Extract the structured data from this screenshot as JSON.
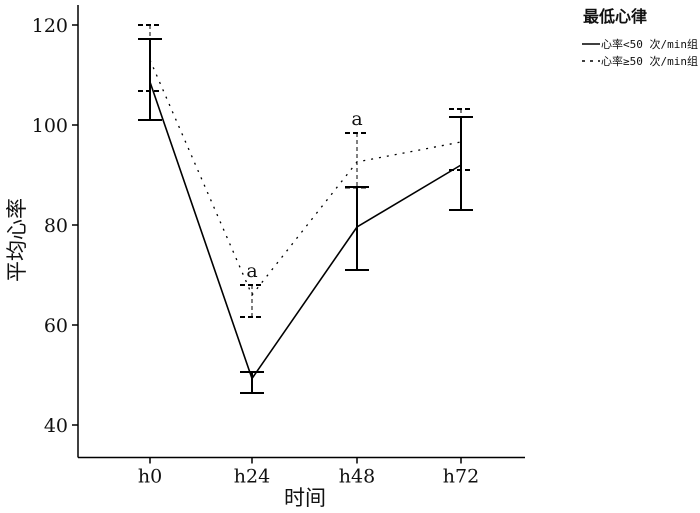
{
  "chart_data": {
    "type": "line",
    "title": "",
    "xlabel": "时间",
    "ylabel": "平均心率",
    "categories": [
      "h0",
      "h24",
      "h48",
      "h72"
    ],
    "yticks": [
      40,
      60,
      80,
      100,
      120
    ],
    "ylim": [
      33.5,
      124
    ],
    "grid": false,
    "legend": {
      "title": "最低心律",
      "placement": "top-right"
    },
    "series": [
      {
        "name": "心率<50 次/min组",
        "style": "solid",
        "values": [
          108.6,
          49.3,
          79.6,
          92
        ],
        "err_upper": [
          117.2,
          50.6,
          87.6,
          101.6
        ],
        "err_lower": [
          101,
          46.4,
          71,
          83
        ]
      },
      {
        "name": "心率≥50 次/min组",
        "style": "dashed",
        "values": [
          113,
          66,
          92.6,
          96.6
        ],
        "err_upper": [
          120,
          68,
          98.4,
          103.2
        ],
        "err_lower": [
          106.8,
          61.6,
          87.5,
          91
        ]
      }
    ],
    "annotations": [
      {
        "text": "a",
        "category": "h24"
      },
      {
        "text": "a",
        "category": "h48"
      }
    ]
  }
}
